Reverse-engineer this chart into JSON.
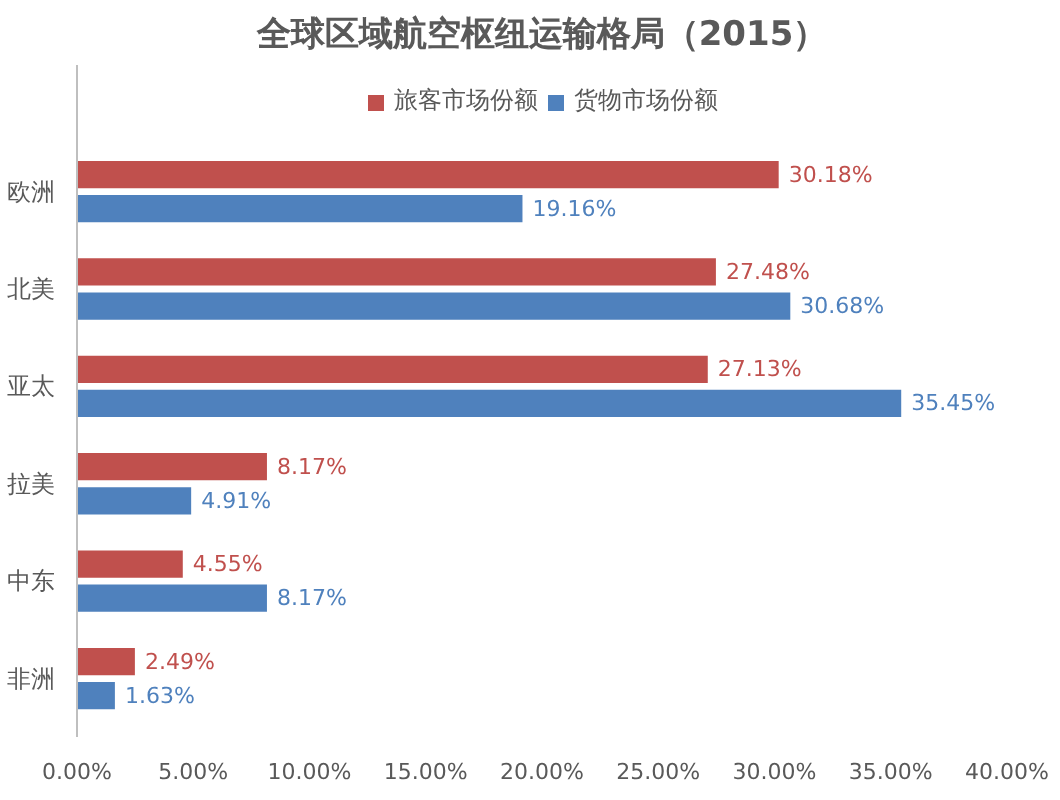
{
  "chart_data": {
    "type": "bar",
    "orientation": "horizontal",
    "title": "全球区域航空枢纽运输格局（2015）",
    "categories": [
      "欧洲",
      "北美",
      "亚太",
      "拉美",
      "中东",
      "非洲"
    ],
    "series": [
      {
        "name": "旅客市场份额",
        "color": "#c0504d",
        "values": [
          30.18,
          27.48,
          27.13,
          8.17,
          4.55,
          2.49
        ],
        "value_labels": [
          "30.18%",
          "27.48%",
          "27.13%",
          "8.17%",
          "4.55%",
          "2.49%"
        ]
      },
      {
        "name": "货物市场份额",
        "color": "#4f81bd",
        "values": [
          19.16,
          30.68,
          35.45,
          4.91,
          8.17,
          1.63
        ],
        "value_labels": [
          "19.16%",
          "30.68%",
          "35.45%",
          "4.91%",
          "8.17%",
          "1.63%"
        ]
      }
    ],
    "xlim": [
      0,
      40
    ],
    "xticks": [
      {
        "value": 0,
        "label": "0.00%"
      },
      {
        "value": 5,
        "label": "5.00%"
      },
      {
        "value": 10,
        "label": "10.00%"
      },
      {
        "value": 15,
        "label": "15.00%"
      },
      {
        "value": 20,
        "label": "20.00%"
      },
      {
        "value": 25,
        "label": "25.00%"
      },
      {
        "value": 30,
        "label": "30.00%"
      },
      {
        "value": 35,
        "label": "35.00%"
      },
      {
        "value": 40,
        "label": "40.00%"
      }
    ],
    "grid": false,
    "legend": "top"
  }
}
